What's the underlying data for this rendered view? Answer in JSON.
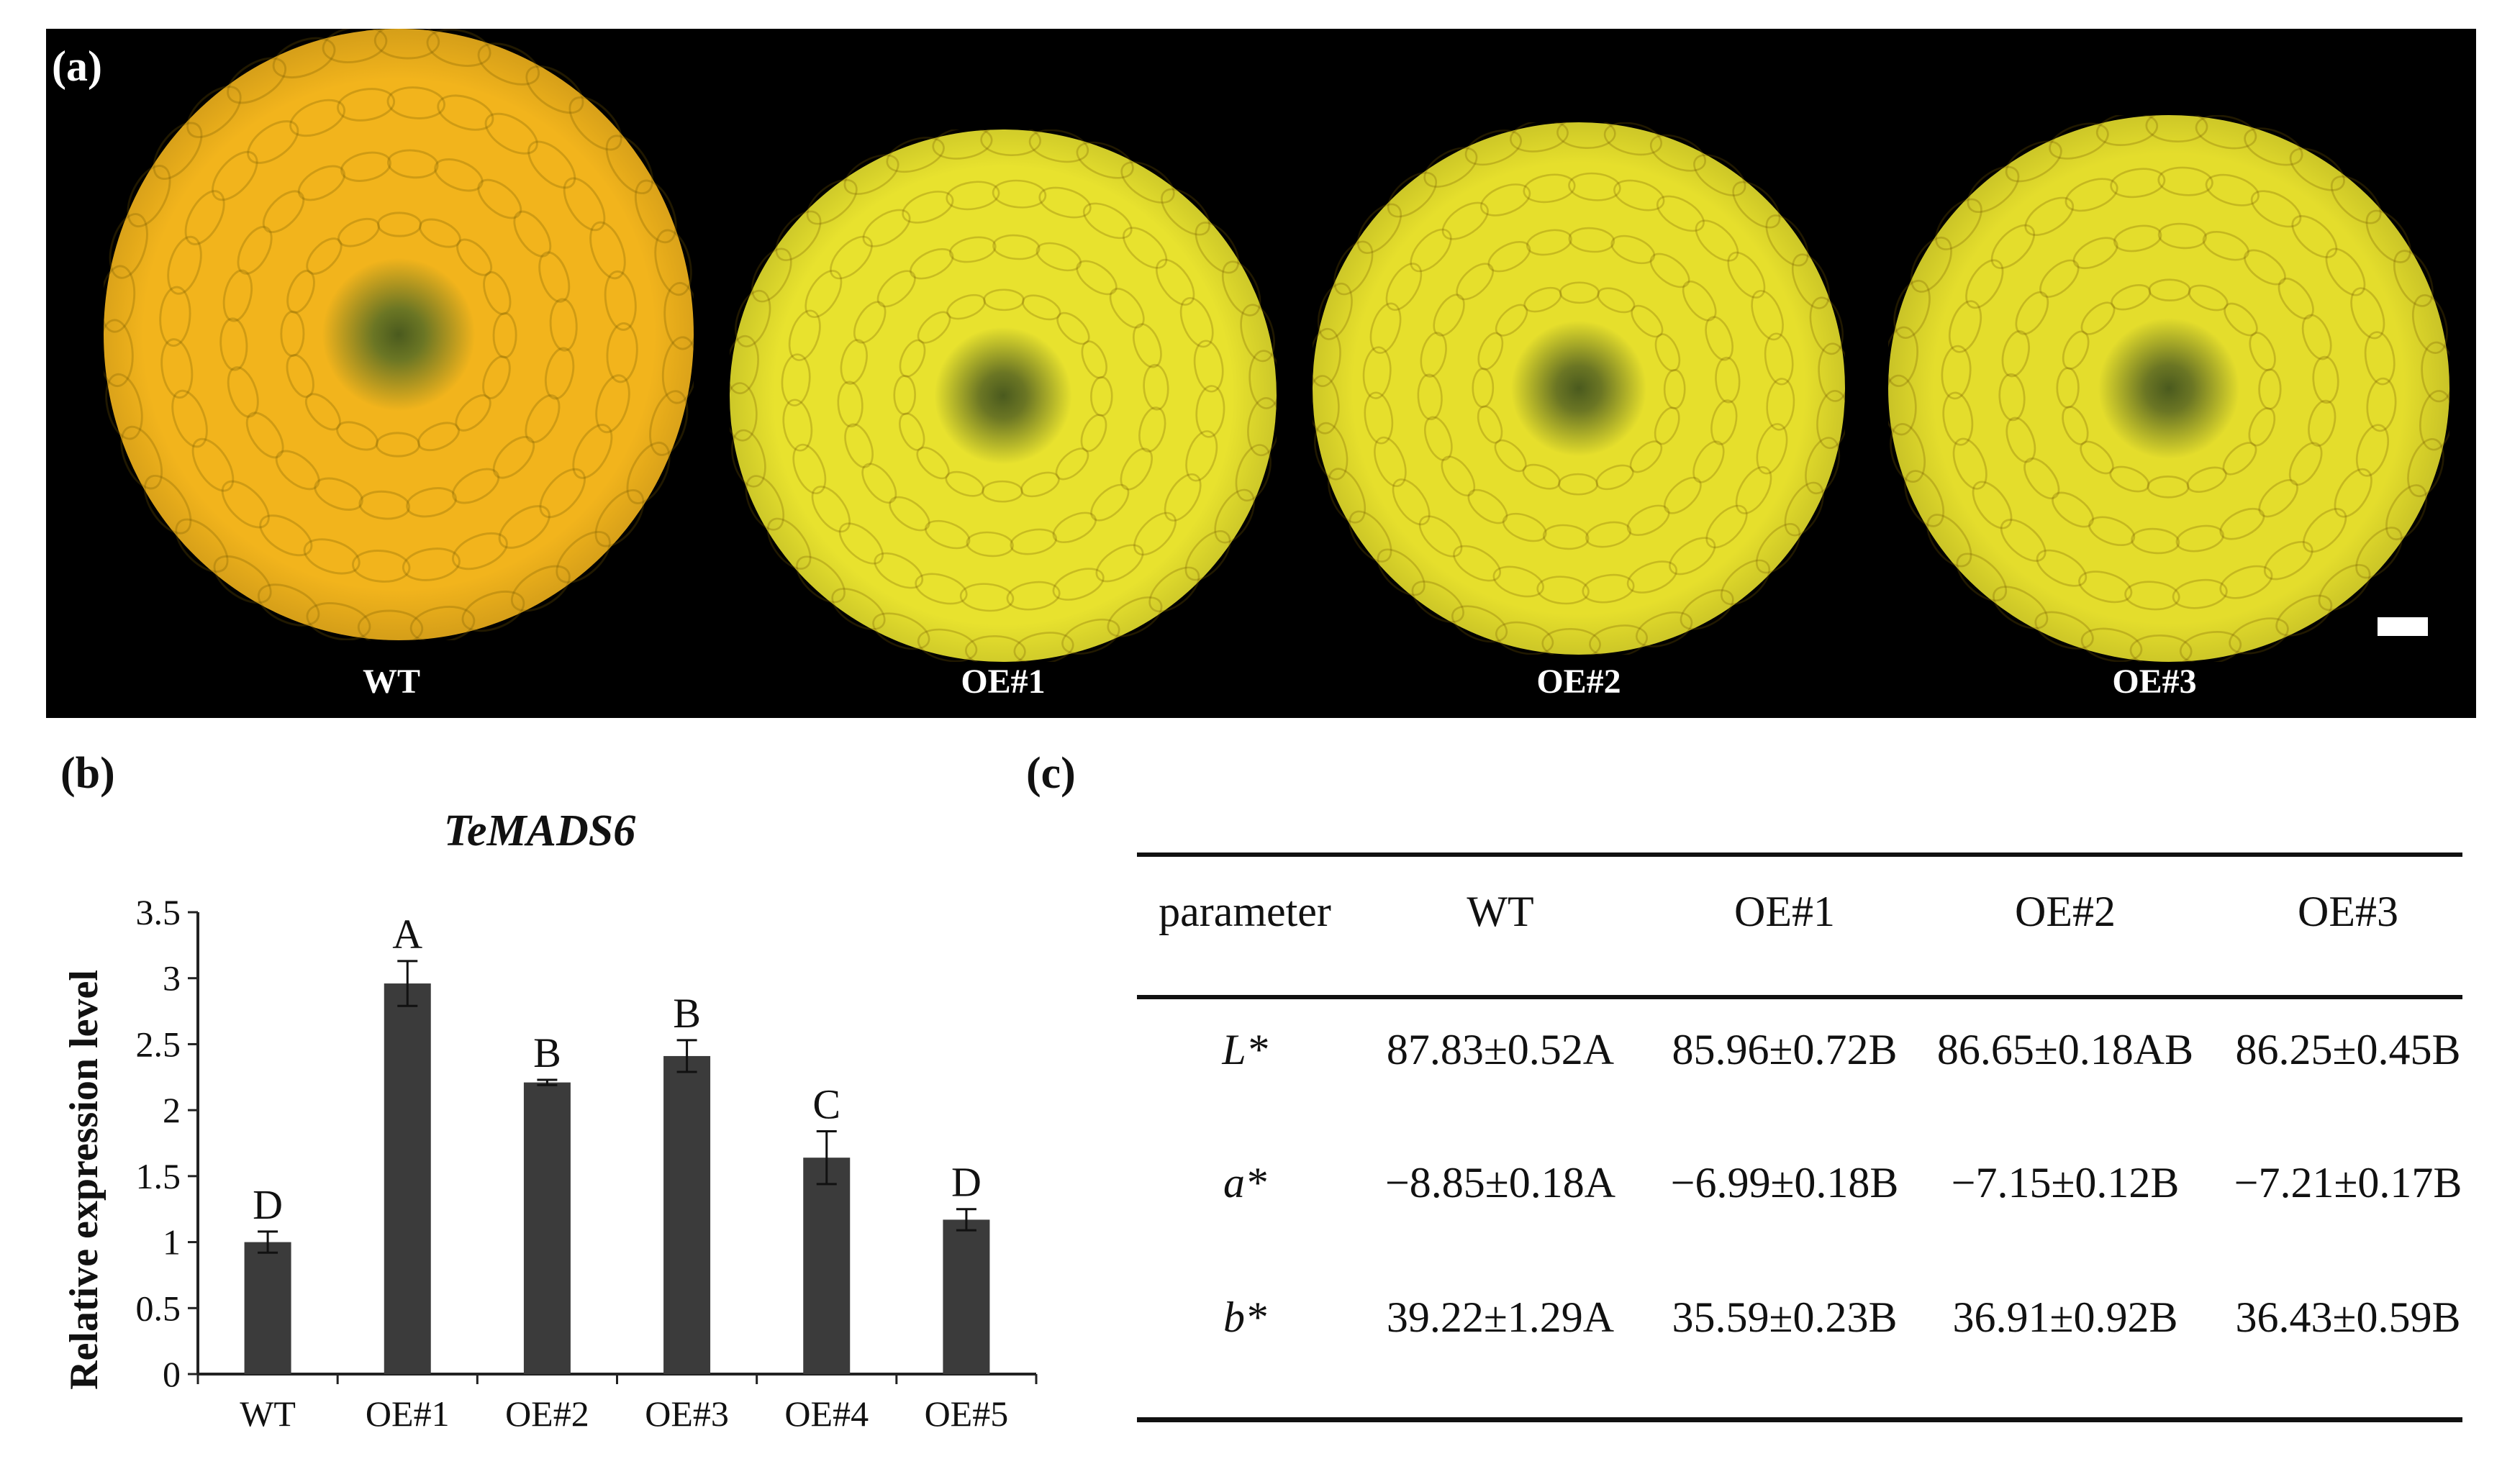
{
  "panel_a": {
    "letter": "(a)",
    "flowers": [
      {
        "label": "WT",
        "color": "#f2b41c"
      },
      {
        "label": "OE#1",
        "color": "#e8e22e"
      },
      {
        "label": "OE#2",
        "color": "#e6df2c"
      },
      {
        "label": "OE#3",
        "color": "#e4dd2c"
      }
    ]
  },
  "panel_b": {
    "letter": "(b)",
    "chart_data": {
      "type": "bar",
      "title": "TeMADS6",
      "ylabel": "Relative expression level",
      "xlabel": "",
      "categories": [
        "WT",
        "OE#1",
        "OE#2",
        "OE#3",
        "OE#4",
        "OE#5"
      ],
      "values": [
        1.0,
        2.96,
        2.21,
        2.41,
        1.64,
        1.17
      ],
      "errors": [
        0.08,
        0.17,
        0.02,
        0.12,
        0.2,
        0.08
      ],
      "letters": [
        "D",
        "A",
        "B",
        "B",
        "C",
        "D"
      ],
      "ylim": [
        0,
        3.5
      ],
      "yticks": [
        "0",
        "0.5",
        "1",
        "1.5",
        "2",
        "2.5",
        "3",
        "3.5"
      ],
      "bar_color": "#3b3b3b",
      "grid": false
    }
  },
  "panel_c": {
    "letter": "(c)",
    "headers": [
      "parameter",
      "WT",
      "OE#1",
      "OE#2",
      "OE#3"
    ],
    "rows": [
      {
        "param": "L*",
        "values": [
          "87.83±0.52A",
          "85.96±0.72B",
          "86.65±0.18AB",
          "86.25±0.45B"
        ]
      },
      {
        "param": "a*",
        "values": [
          "−8.85±0.18A",
          "−6.99±0.18B",
          "−7.15±0.12B",
          "−7.21±0.17B"
        ]
      },
      {
        "param": "b*",
        "values": [
          "39.22±1.29A",
          "35.59±0.23B",
          "36.91±0.92B",
          "36.43±0.59B"
        ]
      }
    ]
  }
}
